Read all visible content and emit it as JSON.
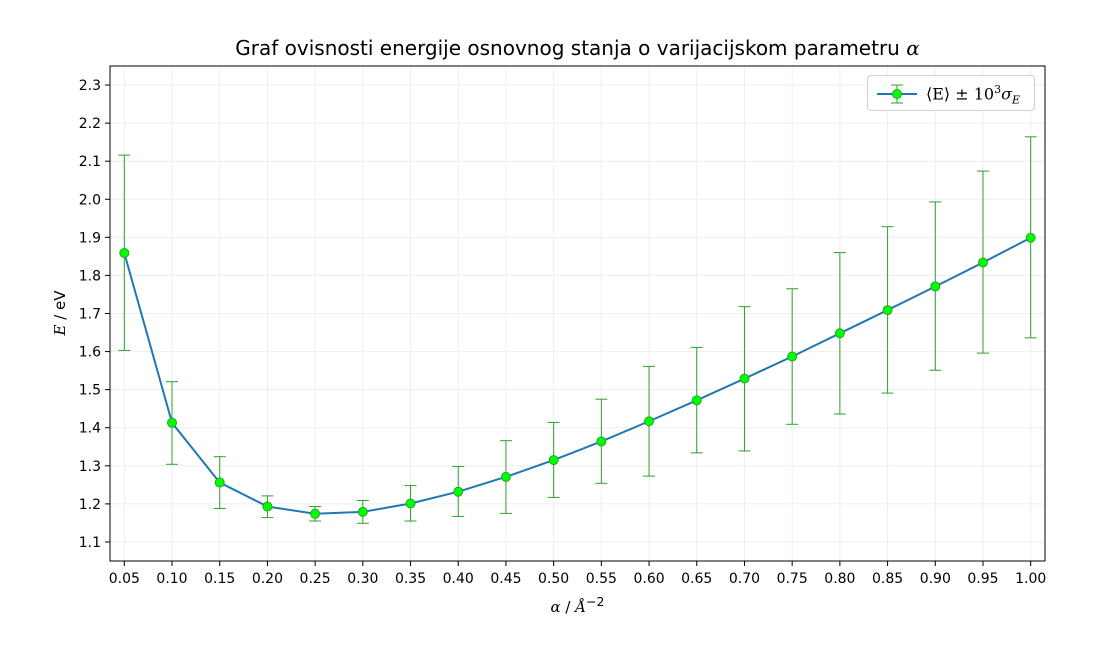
{
  "chart_data": {
    "type": "line",
    "title": "Graf ovisnosti energije osnovnog stanja o varijacijskom parametru α",
    "title_text": "Graf ovisnosti energije osnovnog stanja o varijacijskom parametru",
    "title_symbol": "α",
    "xlabel_symbol": "α",
    "xlabel_unit": "Å",
    "xlabel_exp": "−2",
    "ylabel_symbol": "E",
    "ylabel_unit": "eV",
    "legend_text": "⟨E⟩ ± 10",
    "legend_exp": "3",
    "legend_sigma": "σ",
    "legend_sub": "E",
    "legend_position": "top-right",
    "grid": true,
    "xlim": [
      0.035,
      1.015
    ],
    "ylim": [
      1.05,
      2.35
    ],
    "x_ticks": [
      "0.05",
      "0.10",
      "0.15",
      "0.20",
      "0.25",
      "0.30",
      "0.35",
      "0.40",
      "0.45",
      "0.50",
      "0.55",
      "0.60",
      "0.65",
      "0.70",
      "0.75",
      "0.80",
      "0.85",
      "0.90",
      "0.95",
      "1.00"
    ],
    "y_ticks": [
      "1.1",
      "1.2",
      "1.3",
      "1.4",
      "1.5",
      "1.6",
      "1.7",
      "1.8",
      "1.9",
      "2.0",
      "2.1",
      "2.2",
      "2.3"
    ],
    "series": [
      {
        "x": [
          0.05,
          0.1,
          0.15,
          0.2,
          0.25,
          0.3,
          0.35,
          0.4,
          0.45,
          0.5,
          0.55,
          0.6,
          0.65,
          0.7,
          0.75,
          0.8,
          0.85,
          0.9,
          0.95,
          1.0
        ],
        "y": [
          1.859,
          1.413,
          1.256,
          1.193,
          1.174,
          1.179,
          1.201,
          1.232,
          1.271,
          1.315,
          1.364,
          1.417,
          1.472,
          1.529,
          1.587,
          1.648,
          1.709,
          1.771,
          1.834,
          1.899
        ],
        "err_low": [
          1.603,
          1.304,
          1.188,
          1.164,
          1.155,
          1.149,
          1.155,
          1.167,
          1.175,
          1.217,
          1.254,
          1.273,
          1.334,
          1.339,
          1.409,
          1.436,
          1.491,
          1.551,
          1.596,
          1.636
        ],
        "err_high": [
          2.116,
          1.521,
          1.324,
          1.221,
          1.193,
          1.209,
          1.248,
          1.298,
          1.366,
          1.414,
          1.475,
          1.561,
          1.611,
          1.718,
          1.765,
          1.86,
          1.928,
          1.993,
          2.074,
          2.164
        ]
      }
    ],
    "colors": {
      "line": "#1f77b4",
      "marker_fill": "#00ff00",
      "marker_edge": "#2ca02c",
      "errorbar": "#2ca02c",
      "grid": "#eeeeee"
    }
  }
}
